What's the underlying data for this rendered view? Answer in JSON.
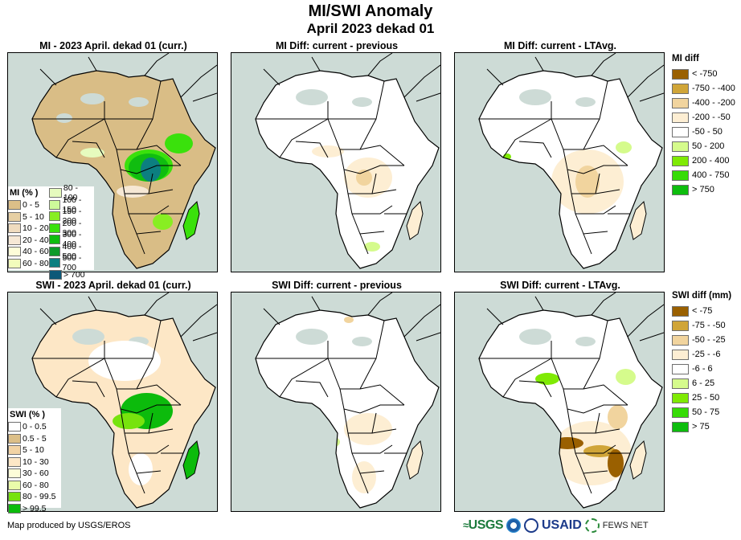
{
  "header": {
    "title": "MI/SWI Anomaly",
    "subtitle": "April 2023 dekad 01"
  },
  "panels": [
    {
      "id": "mi-current",
      "title": "MI - 2023 April. dekad 01 (curr.)",
      "variable": "MI"
    },
    {
      "id": "mi-diff-previous",
      "title": "MI Diff: current - previous",
      "variable": "MI"
    },
    {
      "id": "mi-diff-ltavg",
      "title": "MI Diff: current - LTAvg.",
      "variable": "MI"
    },
    {
      "id": "swi-current",
      "title": "SWI - 2023 April. dekad 01 (curr.)",
      "variable": "SWI"
    },
    {
      "id": "swi-diff-previous",
      "title": "SWI Diff: current - previous",
      "variable": "SWI"
    },
    {
      "id": "swi-diff-ltavg",
      "title": "SWI Diff: current - LTAvg.",
      "variable": "SWI"
    }
  ],
  "legends": {
    "mi_pct": {
      "title": "MI (% )",
      "col1": [
        {
          "label": "0 - 5",
          "color": "#dcbf88"
        },
        {
          "label": "5 - 10",
          "color": "#e6cfa3"
        },
        {
          "label": "10 - 20",
          "color": "#f0dcbf"
        },
        {
          "label": "20 - 40",
          "color": "#f6e8d5"
        },
        {
          "label": "40 - 60",
          "color": "#fdfdd8"
        },
        {
          "label": "60 - 80",
          "color": "#f2fcbc"
        }
      ],
      "col2": [
        {
          "label": "80 - 100",
          "color": "#e6fbbe"
        },
        {
          "label": "100 - 150",
          "color": "#cdf99a"
        },
        {
          "label": "150 - 200",
          "color": "#88ee22"
        },
        {
          "label": "200 - 300",
          "color": "#3ae10c"
        },
        {
          "label": "300 - 400",
          "color": "#10bd10"
        },
        {
          "label": "400 - 500",
          "color": "#0e9a2a"
        },
        {
          "label": "500 - 700",
          "color": "#0c7f80"
        },
        {
          "label": "> 700",
          "color": "#0c5878"
        }
      ]
    },
    "swi_pct": {
      "title": "SWI (% )",
      "items": [
        {
          "label": "0 - 0.5",
          "color": "#ffffff"
        },
        {
          "label": "0.5 - 5",
          "color": "#dcbf88"
        },
        {
          "label": "5 - 10",
          "color": "#f2d3a4"
        },
        {
          "label": "10 - 30",
          "color": "#fde7c6"
        },
        {
          "label": "30 - 60",
          "color": "#fdfdd8"
        },
        {
          "label": "60 - 80",
          "color": "#eafcaa"
        },
        {
          "label": "80 - 99.5",
          "color": "#77e30e"
        },
        {
          "label": "> 99.5",
          "color": "#0cbb0c"
        }
      ]
    },
    "mi_diff": {
      "title": "MI diff",
      "items": [
        {
          "label": "< -750",
          "color": "#9a6000"
        },
        {
          "label": "-750 - -400",
          "color": "#d0a538"
        },
        {
          "label": "-400 - -200",
          "color": "#f1d49e"
        },
        {
          "label": "-200 - -50",
          "color": "#fdeed3"
        },
        {
          "label": "-50 - 50",
          "color": "#ffffff"
        },
        {
          "label": "50 - 200",
          "color": "#d5fb8c"
        },
        {
          "label": "200 - 400",
          "color": "#7fea04"
        },
        {
          "label": "400 - 750",
          "color": "#36dc06"
        },
        {
          "label": "> 750",
          "color": "#0ebd0e"
        }
      ]
    },
    "swi_diff": {
      "title": "SWI diff (mm)",
      "items": [
        {
          "label": "< -75",
          "color": "#9a6000"
        },
        {
          "label": "-75 - -50",
          "color": "#d0a538"
        },
        {
          "label": "-50 - -25",
          "color": "#f1d49e"
        },
        {
          "label": "-25 - -6",
          "color": "#fdeed3"
        },
        {
          "label": "-6 - 6",
          "color": "#ffffff"
        },
        {
          "label": "6 - 25",
          "color": "#d5fb8c"
        },
        {
          "label": "25 - 50",
          "color": "#7fea04"
        },
        {
          "label": "50 - 75",
          "color": "#36dc06"
        },
        {
          "label": "> 75",
          "color": "#0ebd0e"
        }
      ]
    }
  },
  "footer": {
    "credit": "Map produced by USGS/EROS",
    "logos": [
      "USGS",
      "NOAA",
      "USAID",
      "FEWS NET"
    ]
  },
  "colors": {
    "ocean": "#cddbd6",
    "border": "#000000"
  }
}
